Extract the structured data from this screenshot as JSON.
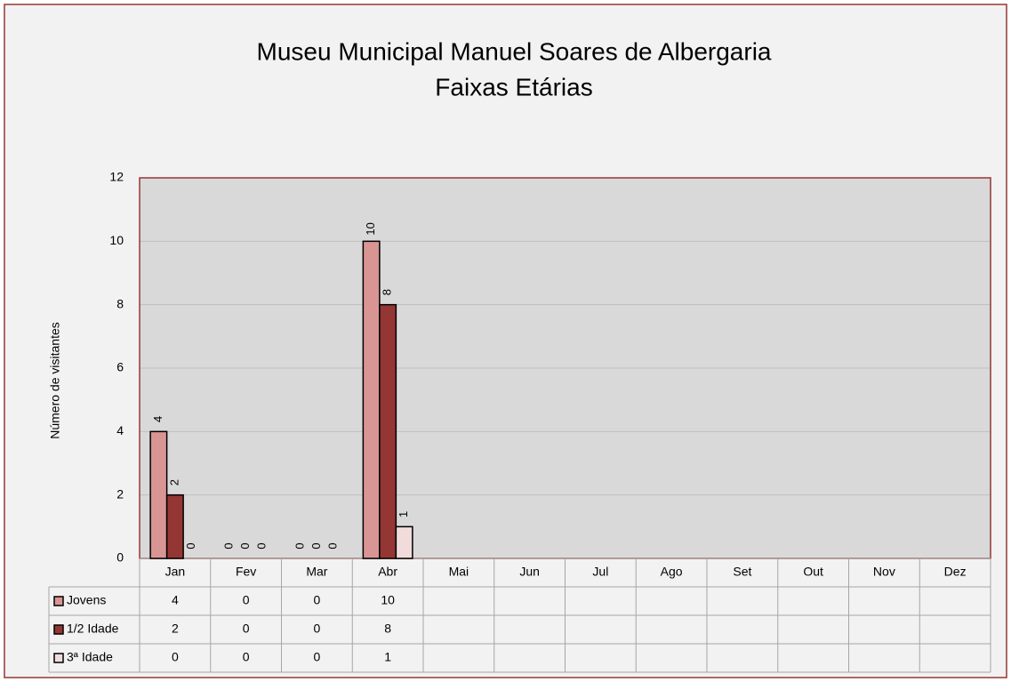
{
  "chart_data": {
    "type": "bar",
    "title": "Museu Municipal Manuel Soares de Albergaria",
    "subtitle": "Faixas Etárias",
    "y_label": "Número de visitantes",
    "categories": [
      "Jan",
      "Fev",
      "Mar",
      "Abr",
      "Mai",
      "Jun",
      "Jul",
      "Ago",
      "Set",
      "Out",
      "Nov",
      "Dez"
    ],
    "series": [
      {
        "name": "Jovens",
        "color": "#d99594",
        "values": [
          4,
          0,
          0,
          10,
          null,
          null,
          null,
          null,
          null,
          null,
          null,
          null
        ]
      },
      {
        "name": "1/2 Idade",
        "color": "#943634",
        "values": [
          2,
          0,
          0,
          8,
          null,
          null,
          null,
          null,
          null,
          null,
          null,
          null
        ]
      },
      {
        "name": "3ª Idade",
        "color": "#f2dcdb",
        "values": [
          0,
          0,
          0,
          1,
          null,
          null,
          null,
          null,
          null,
          null,
          null,
          null
        ]
      }
    ],
    "ylim": [
      0,
      12
    ],
    "yticks": [
      0,
      2,
      4,
      6,
      8,
      10,
      12
    ],
    "grid": true
  }
}
